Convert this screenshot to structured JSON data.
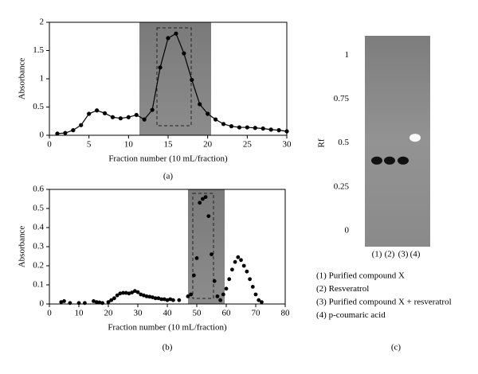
{
  "chart_data": [
    {
      "type": "line",
      "xlabel": "Fraction number (10 mL/fraction)",
      "ylabel": "Absorbance",
      "caption": "(a)",
      "x": [
        1,
        2,
        3,
        4,
        5,
        6,
        7,
        8,
        9,
        10,
        11,
        12,
        13,
        14,
        15,
        16,
        17,
        18,
        19,
        20,
        21,
        22,
        23,
        24,
        25,
        26,
        27,
        28,
        29,
        30
      ],
      "values": [
        0.03,
        0.04,
        0.09,
        0.18,
        0.38,
        0.44,
        0.39,
        0.32,
        0.3,
        0.32,
        0.36,
        0.28,
        0.45,
        1.2,
        1.72,
        1.8,
        1.45,
        0.98,
        0.55,
        0.38,
        0.28,
        0.2,
        0.16,
        0.14,
        0.14,
        0.13,
        0.12,
        0.1,
        0.09,
        0.07
      ],
      "color": "#000000",
      "xlim": [
        0,
        30
      ],
      "xticks": [
        0,
        5,
        10,
        15,
        20,
        25,
        30
      ],
      "ylim": [
        0,
        2
      ],
      "yticks": [
        0,
        0.5,
        1,
        1.5,
        2
      ]
    },
    {
      "type": "scatter",
      "xlabel": "Fraction number (10 mL/fraction)",
      "ylabel": "Absorbance",
      "caption": "(b)",
      "x": [
        4,
        5,
        7,
        10,
        12,
        15,
        16,
        17,
        18,
        20,
        21,
        22,
        23,
        24,
        25,
        26,
        27,
        28,
        29,
        30,
        31,
        32,
        33,
        34,
        35,
        36,
        37,
        38,
        39,
        40,
        41,
        42,
        44,
        47,
        48,
        49,
        50,
        51,
        52,
        53,
        54,
        55,
        56,
        57,
        58,
        59,
        60,
        61,
        62,
        63,
        64,
        65,
        66,
        67,
        68,
        69,
        70,
        71,
        72
      ],
      "values": [
        0.01,
        0.015,
        0.005,
        0.005,
        0.005,
        0.015,
        0.01,
        0.008,
        0.005,
        0.01,
        0.02,
        0.03,
        0.045,
        0.055,
        0.058,
        0.058,
        0.055,
        0.06,
        0.068,
        0.062,
        0.05,
        0.045,
        0.04,
        0.038,
        0.035,
        0.03,
        0.03,
        0.025,
        0.025,
        0.02,
        0.025,
        0.02,
        0.02,
        0.04,
        0.05,
        0.15,
        0.24,
        0.53,
        0.55,
        0.56,
        0.46,
        0.26,
        0.12,
        0.04,
        0.02,
        0.05,
        0.08,
        0.13,
        0.18,
        0.22,
        0.245,
        0.23,
        0.2,
        0.17,
        0.13,
        0.09,
        0.05,
        0.02,
        0.01
      ],
      "color": "#000000",
      "xlim": [
        0,
        80
      ],
      "xticks": [
        0,
        10,
        20,
        30,
        40,
        50,
        60,
        70,
        80
      ],
      "ylim": [
        0,
        0.6
      ],
      "yticks": [
        0,
        0.1,
        0.2,
        0.3,
        0.4,
        0.5,
        0.6
      ]
    },
    {
      "type": "tlc",
      "ylabel": "Rf",
      "caption": "(c)",
      "categories": [
        "(1)",
        "(2)",
        "(3)",
        "(4)"
      ],
      "values": [
        0.4,
        0.4,
        0.4,
        0.53
      ],
      "ylim": [
        -0.09,
        1.11
      ],
      "yticks": [
        0,
        0.25,
        0.5,
        0.75,
        1
      ],
      "notes": [
        "(1) Purified compound X",
        "(2) Resveratrol",
        "(3) Purified compound X + resveratrol",
        "(4) p-coumaric acid"
      ]
    }
  ]
}
